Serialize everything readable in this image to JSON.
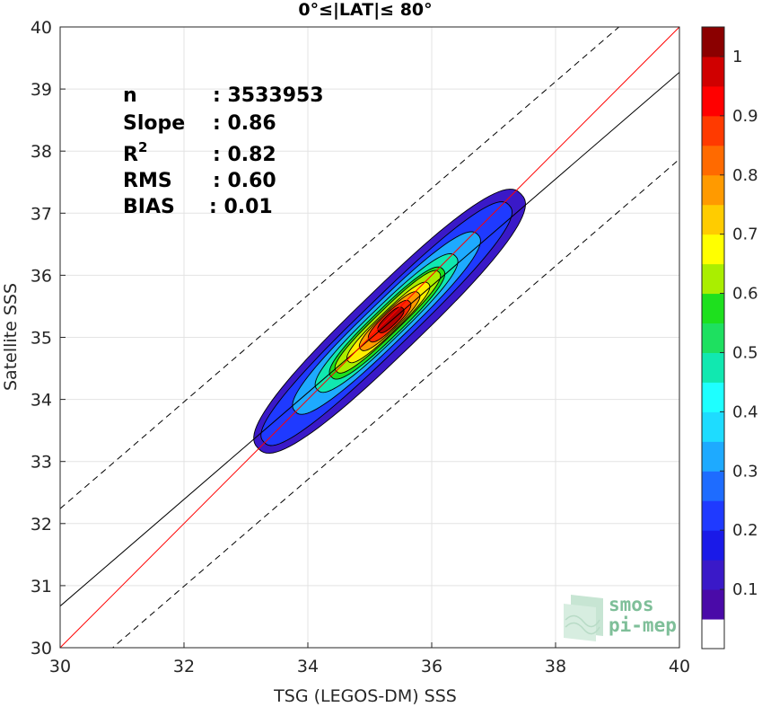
{
  "chart_data": {
    "type": "contour",
    "title": "0°≤|LAT|≤ 80°",
    "xlabel": "TSG (LEGOS-DM) SSS",
    "ylabel": "Satellite SSS",
    "xlim": [
      30,
      40
    ],
    "ylim": [
      30,
      40
    ],
    "xticks": [
      30,
      32,
      34,
      36,
      38,
      40
    ],
    "yticks": [
      30,
      31,
      32,
      33,
      34,
      35,
      36,
      37,
      38,
      39,
      40
    ],
    "grid": true,
    "stats": {
      "n_label": "n",
      "n_value": ": 3533953",
      "slope_label": "Slope",
      "slope_value": ": 0.86",
      "r2_label": "R",
      "r2_sup": "2",
      "r2_value": ": 0.82",
      "rms_label": "RMS",
      "rms_value": ": 0.60",
      "bias_label": "BIAS",
      "bias_value": ": 0.01"
    },
    "reference_lines": {
      "one_to_one": {
        "color": "#ff0000",
        "slope": 1.0,
        "intercept": 0.0
      },
      "regression": {
        "color": "#000000",
        "slope": 0.86,
        "intercept": 4.87
      },
      "upper_bound": {
        "color": "#000000",
        "style": "dashed",
        "slope": 0.86,
        "intercept": 6.44
      },
      "lower_bound": {
        "color": "#000000",
        "style": "dashed",
        "slope": 0.86,
        "intercept": 3.47
      }
    },
    "contour": {
      "center": [
        35.32,
        35.26
      ],
      "major_axis_angle_deg": 44,
      "levels": [
        {
          "level": 0.05,
          "color": "#3a19c8",
          "radius_major": 2.95,
          "radius_minor": 0.52,
          "offset": [
            0.0,
            0.0
          ]
        },
        {
          "level": 0.15,
          "color": "#1f3aff",
          "radius_major": 2.75,
          "radius_minor": 0.4,
          "offset": [
            -0.05,
            -0.04
          ]
        },
        {
          "level": 0.25,
          "color": "#1eaaff",
          "radius_major": 2.05,
          "radius_minor": 0.33,
          "offset": [
            -0.05,
            -0.03
          ]
        },
        {
          "level": 0.35,
          "color": "#11e8b0",
          "radius_major": 1.55,
          "radius_minor": 0.27,
          "offset": [
            -0.05,
            -0.03
          ]
        },
        {
          "level": 0.45,
          "color": "#1ee01e",
          "radius_major": 1.25,
          "radius_minor": 0.23,
          "offset": [
            -0.04,
            -0.03
          ]
        },
        {
          "level": 0.55,
          "color": "#aaee00",
          "radius_major": 1.15,
          "radius_minor": 0.19,
          "offset": [
            -0.03,
            -0.01
          ]
        },
        {
          "level": 0.65,
          "color": "#ffee00",
          "radius_major": 0.9,
          "radius_minor": 0.16,
          "offset": [
            -0.02,
            -0.02
          ]
        },
        {
          "level": 0.75,
          "color": "#ff9a00",
          "radius_major": 0.65,
          "radius_minor": 0.14,
          "offset": [
            0.0,
            0.0
          ]
        },
        {
          "level": 0.85,
          "color": "#ff2a00",
          "radius_major": 0.45,
          "radius_minor": 0.12,
          "offset": [
            0.0,
            0.0
          ]
        },
        {
          "level": 0.95,
          "color": "#b20000",
          "radius_major": 0.27,
          "radius_minor": 0.09,
          "offset": [
            0.02,
            0.02
          ]
        }
      ]
    },
    "colorbar": {
      "ticks": [
        "0.1",
        "0.2",
        "0.3",
        "0.4",
        "0.5",
        "0.6",
        "0.7",
        "0.8",
        "0.9",
        "1"
      ],
      "tick_values": [
        0.1,
        0.2,
        0.3,
        0.4,
        0.5,
        0.6,
        0.7,
        0.8,
        0.9,
        1.0
      ],
      "bands": [
        {
          "from": 0.0,
          "to": 0.05,
          "color": "#ffffff"
        },
        {
          "from": 0.05,
          "to": 0.1,
          "color": "#4a0aa8"
        },
        {
          "from": 0.1,
          "to": 0.15,
          "color": "#3a19c8"
        },
        {
          "from": 0.15,
          "to": 0.2,
          "color": "#1a1ae8"
        },
        {
          "from": 0.2,
          "to": 0.25,
          "color": "#1f3aff"
        },
        {
          "from": 0.25,
          "to": 0.3,
          "color": "#1e6cff"
        },
        {
          "from": 0.3,
          "to": 0.35,
          "color": "#1eaaff"
        },
        {
          "from": 0.35,
          "to": 0.4,
          "color": "#1edcff"
        },
        {
          "from": 0.4,
          "to": 0.45,
          "color": "#1effff"
        },
        {
          "from": 0.45,
          "to": 0.5,
          "color": "#11e8b0"
        },
        {
          "from": 0.5,
          "to": 0.55,
          "color": "#1ee060"
        },
        {
          "from": 0.55,
          "to": 0.6,
          "color": "#1ee01e"
        },
        {
          "from": 0.6,
          "to": 0.65,
          "color": "#aaee00"
        },
        {
          "from": 0.65,
          "to": 0.7,
          "color": "#ffff00"
        },
        {
          "from": 0.7,
          "to": 0.75,
          "color": "#ffcc00"
        },
        {
          "from": 0.75,
          "to": 0.8,
          "color": "#ff9a00"
        },
        {
          "from": 0.8,
          "to": 0.85,
          "color": "#ff6a00"
        },
        {
          "from": 0.85,
          "to": 0.9,
          "color": "#ff3a00"
        },
        {
          "from": 0.9,
          "to": 0.95,
          "color": "#ff0000"
        },
        {
          "from": 0.95,
          "to": 1.0,
          "color": "#d00000"
        },
        {
          "from": 1.0,
          "to": 1.05,
          "color": "#8b0000"
        }
      ]
    }
  },
  "logo": {
    "line1": "smos",
    "line2": "pi-mep"
  }
}
